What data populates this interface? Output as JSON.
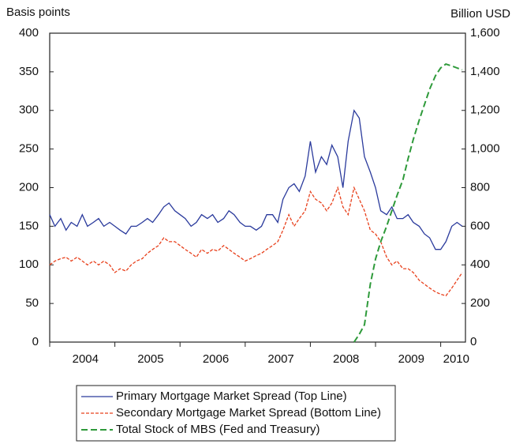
{
  "chart_data": {
    "type": "line",
    "y_label": "Basis points",
    "y2_label": "Billion USD",
    "xlim": [
      2004,
      2010.38
    ],
    "xticks": [
      {
        "value": 2004,
        "label": "2004"
      },
      {
        "value": 2005,
        "label": "2005"
      },
      {
        "value": 2006,
        "label": "2006"
      },
      {
        "value": 2007,
        "label": "2007"
      },
      {
        "value": 2008,
        "label": "2008"
      },
      {
        "value": 2009,
        "label": "2009"
      },
      {
        "value": 2010,
        "label": "2010"
      }
    ],
    "ylim": [
      0,
      400
    ],
    "yticks": [
      0,
      50,
      100,
      150,
      200,
      250,
      300,
      350,
      400
    ],
    "y2lim": [
      0,
      1600
    ],
    "y2ticks": [
      0,
      200,
      400,
      600,
      800,
      {
        "value": 1000,
        "label": "1,000"
      },
      {
        "value": 1200,
        "label": "1,200"
      },
      {
        "value": 1400,
        "label": "1,400"
      },
      {
        "value": 1600,
        "label": "1,600"
      }
    ],
    "series": [
      {
        "name": "Primary Mortgage Market Spread (Top Line)",
        "color": "#2a3a9c",
        "style": "solid",
        "x": [
          2004,
          2004.08,
          2004.17,
          2004.25,
          2004.33,
          2004.42,
          2004.5,
          2004.58,
          2004.67,
          2004.75,
          2004.83,
          2004.92,
          2005,
          2005.08,
          2005.17,
          2005.25,
          2005.33,
          2005.42,
          2005.5,
          2005.58,
          2005.67,
          2005.75,
          2005.83,
          2005.92,
          2006,
          2006.08,
          2006.17,
          2006.25,
          2006.33,
          2006.42,
          2006.5,
          2006.58,
          2006.67,
          2006.75,
          2006.83,
          2006.92,
          2007,
          2007.08,
          2007.17,
          2007.25,
          2007.33,
          2007.42,
          2007.5,
          2007.58,
          2007.67,
          2007.75,
          2007.83,
          2007.92,
          2008,
          2008.08,
          2008.17,
          2008.25,
          2008.33,
          2008.42,
          2008.5,
          2008.58,
          2008.67,
          2008.75,
          2008.83,
          2008.92,
          2009,
          2009.08,
          2009.17,
          2009.25,
          2009.33,
          2009.42,
          2009.5,
          2009.58,
          2009.67,
          2009.75,
          2009.83,
          2009.92,
          2010,
          2010.08,
          2010.17,
          2010.25,
          2010.33
        ],
        "values": [
          165,
          150,
          160,
          145,
          155,
          150,
          165,
          150,
          155,
          160,
          150,
          155,
          150,
          145,
          140,
          150,
          150,
          155,
          160,
          155,
          165,
          175,
          180,
          170,
          165,
          160,
          150,
          155,
          165,
          160,
          165,
          155,
          160,
          170,
          165,
          155,
          150,
          150,
          145,
          150,
          165,
          165,
          155,
          185,
          200,
          205,
          195,
          215,
          260,
          220,
          240,
          230,
          255,
          240,
          200,
          260,
          300,
          290,
          240,
          220,
          200,
          170,
          165,
          175,
          160,
          160,
          165,
          155,
          150,
          140,
          135,
          120,
          120,
          130,
          150,
          155,
          150
        ]
      },
      {
        "name": "Secondary Mortgage Market Spread (Bottom Line)",
        "color": "#e8401c",
        "style": "dashed",
        "x": [
          2004,
          2004.08,
          2004.17,
          2004.25,
          2004.33,
          2004.42,
          2004.5,
          2004.58,
          2004.67,
          2004.75,
          2004.83,
          2004.92,
          2005,
          2005.08,
          2005.17,
          2005.25,
          2005.33,
          2005.42,
          2005.5,
          2005.58,
          2005.67,
          2005.75,
          2005.83,
          2005.92,
          2006,
          2006.08,
          2006.17,
          2006.25,
          2006.33,
          2006.42,
          2006.5,
          2006.58,
          2006.67,
          2006.75,
          2006.83,
          2006.92,
          2007,
          2007.08,
          2007.17,
          2007.25,
          2007.33,
          2007.42,
          2007.5,
          2007.58,
          2007.67,
          2007.75,
          2007.83,
          2007.92,
          2008,
          2008.08,
          2008.17,
          2008.25,
          2008.33,
          2008.42,
          2008.5,
          2008.58,
          2008.67,
          2008.75,
          2008.83,
          2008.92,
          2009,
          2009.08,
          2009.17,
          2009.25,
          2009.33,
          2009.42,
          2009.5,
          2009.58,
          2009.67,
          2009.75,
          2009.83,
          2009.92,
          2010,
          2010.08,
          2010.17,
          2010.25,
          2010.33
        ],
        "values": [
          100,
          105,
          108,
          110,
          105,
          110,
          105,
          100,
          105,
          100,
          105,
          100,
          90,
          95,
          92,
          100,
          105,
          108,
          115,
          120,
          125,
          135,
          130,
          130,
          125,
          120,
          115,
          110,
          120,
          115,
          120,
          118,
          125,
          120,
          115,
          110,
          105,
          108,
          112,
          115,
          120,
          125,
          130,
          145,
          165,
          150,
          160,
          170,
          195,
          185,
          180,
          170,
          180,
          200,
          175,
          165,
          200,
          185,
          170,
          145,
          140,
          130,
          110,
          100,
          105,
          95,
          95,
          90,
          80,
          75,
          70,
          65,
          62,
          60,
          70,
          80,
          90
        ]
      },
      {
        "name": "Total Stock of MBS (Fed and Treasury)",
        "color": "#2e9a3a",
        "style": "dashed",
        "axis": "y2",
        "x": [
          2008.67,
          2008.75,
          2008.83,
          2008.92,
          2009,
          2009.08,
          2009.17,
          2009.25,
          2009.33,
          2009.42,
          2009.5,
          2009.58,
          2009.67,
          2009.75,
          2009.83,
          2009.92,
          2010,
          2010.08,
          2010.17,
          2010.25,
          2010.33
        ],
        "values": [
          0,
          40,
          90,
          300,
          430,
          520,
          600,
          680,
          760,
          840,
          950,
          1050,
          1150,
          1230,
          1310,
          1380,
          1420,
          1440,
          1430,
          1420,
          1410
        ]
      }
    ]
  }
}
